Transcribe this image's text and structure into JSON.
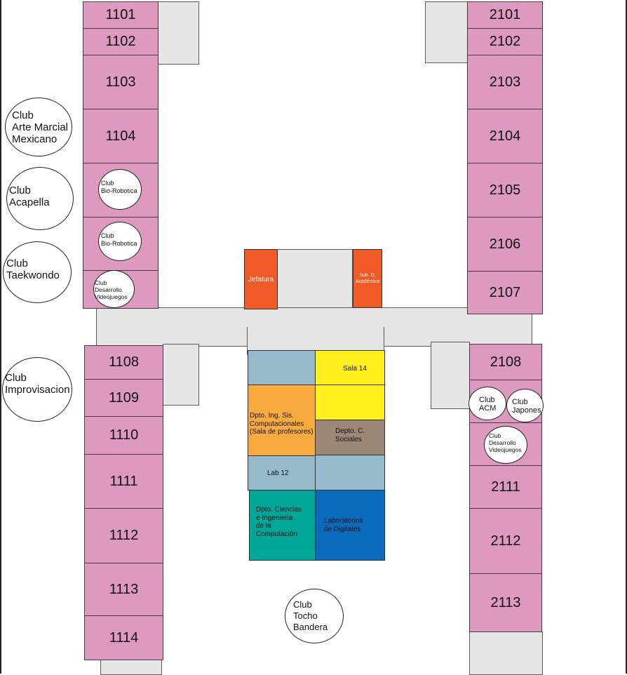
{
  "colors": {
    "room_pink": "#dd99c0",
    "corridor_gray": "#e6e6e6",
    "office_orange": "#ef5a27",
    "light_blue": "#97bacd",
    "yellow": "#fff01e",
    "light_orange": "#f9ac3d",
    "brown": "#9c8877",
    "dark_blue": "#0a6bbd",
    "teal": "#00a698"
  },
  "rooms_left": [
    "1101",
    "1102",
    "1103",
    "1104",
    "1108",
    "1109",
    "1110",
    "1111",
    "1112",
    "1113",
    "1114"
  ],
  "rooms_right": [
    "2101",
    "2102",
    "2103",
    "2104",
    "2105",
    "2106",
    "2107",
    "2108",
    "2111",
    "2112",
    "2113"
  ],
  "offices": {
    "jefatura": "Jefatura",
    "subdireccion": "Sub. D.\nAcadémica"
  },
  "center_blocks": {
    "sala14": "Sala 14",
    "dpto_sistemas": "Dpto. Ing. Sis.\nComputacionales\n(Sala de profesores)",
    "depto_sociales": "Depto. C.\nSociales",
    "lab12": "Lab 12",
    "dpto_ciencias": "Dpto. Ciencias\ne Ingenieria\nde la\nComputación",
    "laboratorios": "Laboratorios\nde Digitales"
  },
  "clubs": {
    "arte_marcial": "Club\nArte Marcial\nMexicano",
    "acapella": "Club\nAcapella",
    "taekwondo": "Club\nTaekwondo",
    "improvisacion": "Club\nImprovisacion",
    "bio_robotica_1": "Club\nBio-Robotica",
    "bio_robotica_2": "Club\nBio-Robotica",
    "videojuegos_left": "Club\nDesarrollo\nVideojuegos",
    "acm": "Club\nACM",
    "japones": "Club\nJapones",
    "videojuegos_right": "Club\nDesarrollo\nVideojuegos",
    "tocho": "Club\nTocho\nBandera"
  }
}
